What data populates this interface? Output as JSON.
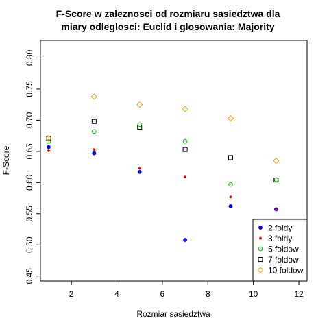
{
  "chart_data": {
    "type": "scatter",
    "title_line1": "F-Score w zaleznosci od rozmiaru sasiedztwa dla",
    "title_line2": "miary odleglosci: Euclid  i glosowania:  Majority",
    "xlabel": "Rozmiar sasiedztwa",
    "ylabel": "F-Score",
    "xlim": [
      0.64,
      12.36
    ],
    "ylim": [
      0.442,
      0.828
    ],
    "x_ticks": [
      2,
      4,
      6,
      8,
      10,
      12
    ],
    "x_tick_labels": [
      "2",
      "4",
      "6",
      "8",
      "10",
      "12"
    ],
    "y_ticks": [
      0.45,
      0.5,
      0.55,
      0.6,
      0.65,
      0.7,
      0.75,
      0.8
    ],
    "y_tick_labels": [
      "0.45",
      "0.50",
      "0.55",
      "0.60",
      "0.65",
      "0.70",
      "0.75",
      "0.80"
    ],
    "grid": false,
    "legend_position": "bottom-right",
    "series": [
      {
        "name": "2 foldy",
        "color": "#0000ff",
        "marker": "filled-circle",
        "x": [
          1,
          3,
          5,
          7,
          9,
          11
        ],
        "y": [
          0.657,
          0.647,
          0.617,
          0.508,
          0.562,
          0.557
        ]
      },
      {
        "name": "3 foldy",
        "color": "#ff0000",
        "marker": "small-dot",
        "x": [
          1,
          3,
          5,
          7,
          9,
          11
        ],
        "y": [
          0.651,
          0.653,
          0.623,
          0.609,
          0.577,
          0.556
        ]
      },
      {
        "name": "5 foldow",
        "color": "#00cc00",
        "marker": "open-circle",
        "x": [
          1,
          3,
          5,
          7,
          9,
          11
        ],
        "y": [
          0.666,
          0.682,
          0.693,
          0.666,
          0.597,
          0.605
        ]
      },
      {
        "name": "7 foldow",
        "color": "#000000",
        "marker": "open-square",
        "x": [
          1,
          3,
          5,
          7,
          9,
          11
        ],
        "y": [
          0.671,
          0.698,
          0.689,
          0.653,
          0.64,
          0.604
        ]
      },
      {
        "name": "10 foldow",
        "color": "#ff9900",
        "marker": "open-diamond",
        "x": [
          1,
          3,
          5,
          7,
          9,
          11
        ],
        "y": [
          0.671,
          0.738,
          0.725,
          0.718,
          0.703,
          0.635
        ]
      }
    ]
  }
}
